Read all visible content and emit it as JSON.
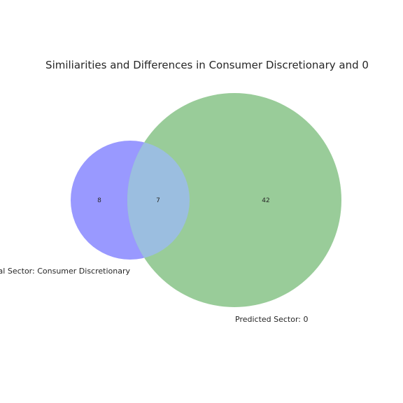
{
  "chart_data": {
    "type": "venn",
    "title": "Similiarities and Differences in Consumer Discretionary and 0",
    "sets": [
      {
        "label": "Original Sector: Consumer Discretionary",
        "only_count": "8",
        "color": "#9999ff"
      },
      {
        "label": "Predicted Sector: 0",
        "only_count": "42",
        "color": "#99cc99"
      }
    ],
    "intersection": {
      "count": "7",
      "color": "#9bbee0"
    }
  }
}
